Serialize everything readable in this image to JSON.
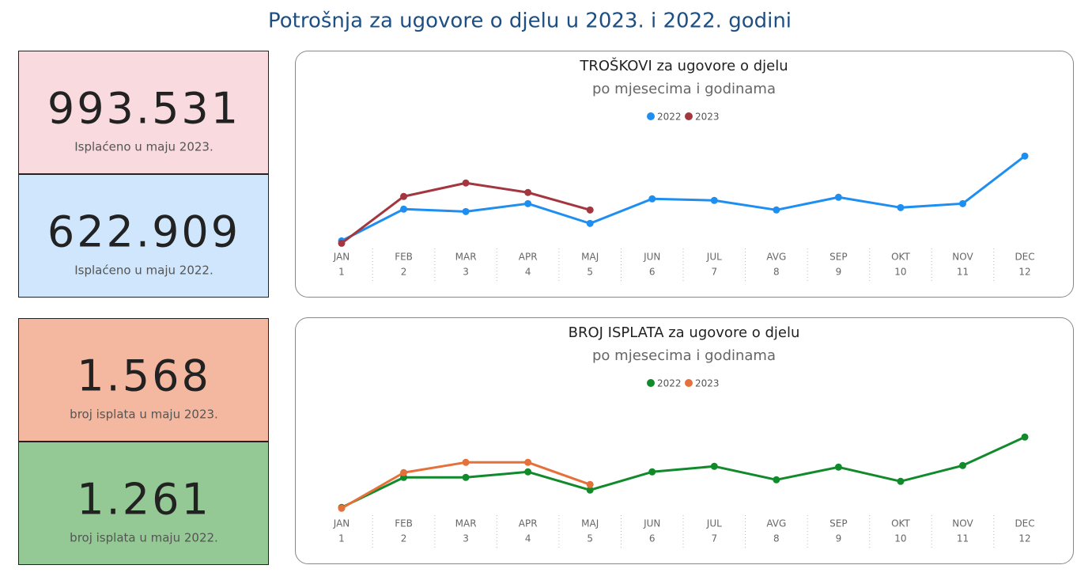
{
  "header": {
    "title": "Potrošnja za ugovore o djelu u 2023. i 2022. godini"
  },
  "kpi_cards": [
    {
      "value": "993.531",
      "label": "Isplaćeno u maju 2023.",
      "color": "#f9dade"
    },
    {
      "value": "622.909",
      "label": "Isplaćeno u maju 2022.",
      "color": "#cfe6fd"
    },
    {
      "value": "1.568",
      "label": "broj isplata u maju 2023.",
      "color": "#f4b8a0"
    },
    {
      "value": "1.261",
      "label": "broj isplata u maju 2022.",
      "color": "#94c895"
    }
  ],
  "chart_data": [
    {
      "type": "line",
      "title": "TROŠKOVI za ugovore o djelu",
      "subtitle": "po mjesecima i godinama",
      "categories": [
        "JAN",
        "FEB",
        "MAR",
        "APR",
        "MAJ",
        "JUN",
        "JUL",
        "AVG",
        "SEP",
        "OKT",
        "NOV",
        "DEC"
      ],
      "category_numbers": [
        1,
        2,
        3,
        4,
        5,
        6,
        7,
        8,
        9,
        10,
        11,
        12
      ],
      "ylim": [
        0,
        2850000
      ],
      "legend": "top",
      "series": [
        {
          "name": "2022",
          "color": "#1f8ef1",
          "values": [
            144000,
            1016000,
            950000,
            1168000,
            622909,
            1299000,
            1256000,
            994000,
            1343000,
            1059000,
            1168000,
            2476000
          ]
        },
        {
          "name": "2023",
          "color": "#a3363f",
          "values": [
            78000,
            1365000,
            1735000,
            1474000,
            993531,
            null,
            null,
            null,
            null,
            null,
            null,
            null
          ]
        }
      ]
    },
    {
      "type": "line",
      "title": "BROJ ISPLATA za ugovore o djelu",
      "subtitle": "po mjesecima i godinama",
      "categories": [
        "JAN",
        "FEB",
        "MAR",
        "APR",
        "MAJ",
        "JUN",
        "JUL",
        "AVG",
        "SEP",
        "OKT",
        "NOV",
        "DEC"
      ],
      "category_numbers": [
        1,
        2,
        3,
        4,
        5,
        6,
        7,
        8,
        9,
        10,
        11,
        12
      ],
      "ylim": [
        0,
        5750
      ],
      "legend": "top",
      "series": [
        {
          "name": "2022",
          "color": "#118a2c",
          "values": [
            294,
            1962,
            1962,
            2270,
            1261,
            2270,
            2577,
            1831,
            2533,
            1743,
            2621,
            4201
          ]
        },
        {
          "name": "2023",
          "color": "#e5703a",
          "values": [
            250,
            2226,
            2796,
            2796,
            1568,
            null,
            null,
            null,
            null,
            null,
            null,
            null
          ]
        }
      ]
    }
  ]
}
